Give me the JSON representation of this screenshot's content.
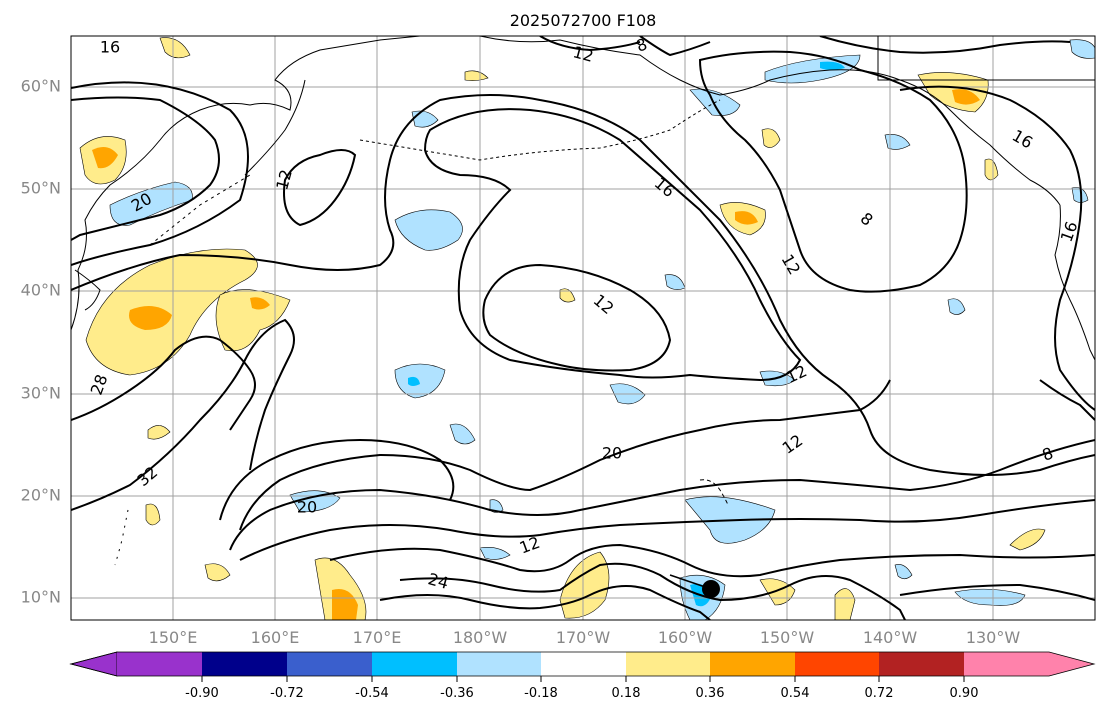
{
  "title": "2025072700 F108",
  "map": {
    "lat_ticks": [
      "10°N",
      "20°N",
      "30°N",
      "40°N",
      "50°N",
      "60°N"
    ],
    "lon_ticks": [
      "150°E",
      "160°E",
      "170°E",
      "180°W",
      "170°W",
      "160°W",
      "150°W",
      "140°W",
      "130°W"
    ],
    "contour_labels": [
      "16",
      "12",
      "8",
      "12",
      "20",
      "16",
      "16",
      "12",
      "16",
      "8",
      "12",
      "28",
      "32",
      "12",
      "20",
      "12",
      "8",
      "20",
      "12",
      "24"
    ],
    "colors": {
      "contour": "#000000",
      "grid": "#a0a0a0",
      "coast": "#000000"
    }
  },
  "colorbar": {
    "levels": [
      "-0.90",
      "-0.72",
      "-0.54",
      "-0.36",
      "-0.18",
      "0.18",
      "0.36",
      "0.54",
      "0.72",
      "0.90"
    ],
    "colors": [
      "#9932cc",
      "#00008b",
      "#3a5fcd",
      "#00bfff",
      "#b0e2ff",
      "#ffffff",
      "#ffec8b",
      "#ffa500",
      "#ff4500",
      "#b22222",
      "#ff82ab"
    ]
  }
}
